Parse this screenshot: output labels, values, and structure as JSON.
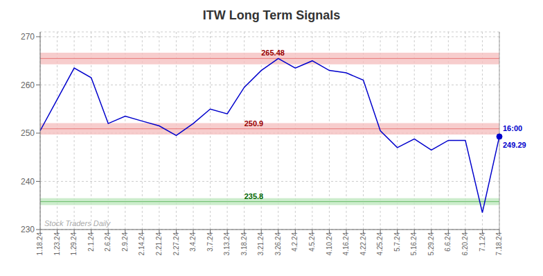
{
  "chart_data": {
    "type": "line",
    "title": "ITW Long Term Signals",
    "categories": [
      "1.18.24",
      "1.23.24",
      "1.29.24",
      "2.1.24",
      "2.6.24",
      "2.9.24",
      "2.14.24",
      "2.21.24",
      "2.27.24",
      "3.4.24",
      "3.7.24",
      "3.13.24",
      "3.18.24",
      "3.21.24",
      "3.26.24",
      "4.2.24",
      "4.5.24",
      "4.10.24",
      "4.16.24",
      "4.22.24",
      "4.25.24",
      "5.7.24",
      "5.16.24",
      "5.29.24",
      "6.6.24",
      "6.20.24",
      "7.1.24",
      "7.18.24"
    ],
    "values": [
      250.5,
      257.0,
      263.5,
      261.5,
      252.0,
      253.5,
      252.5,
      251.5,
      249.5,
      252.0,
      255.0,
      254.0,
      259.5,
      263.0,
      265.48,
      263.5,
      265.0,
      263.0,
      262.5,
      261.0,
      250.5,
      247.0,
      248.8,
      246.5,
      248.5,
      248.5,
      233.5,
      249.29
    ],
    "color": "#0000cc",
    "ylim": [
      230,
      271
    ],
    "yticks": [
      230,
      240,
      250,
      260,
      270
    ],
    "grid": true,
    "reference_lines": [
      {
        "value": 265.48,
        "label": "265.48",
        "color": "#e87878",
        "label_color": "#990000",
        "label_x": "3.21.24",
        "band": [
          264.28,
          266.68
        ],
        "band_color": "#f5c0c0"
      },
      {
        "value": 250.9,
        "label": "250.9",
        "color": "#e87878",
        "label_color": "#990000",
        "label_x": "3.18.24",
        "band": [
          249.7,
          252.1
        ],
        "band_color": "#f5c0c0"
      },
      {
        "value": 235.8,
        "label": "235.8",
        "color": "#66bb66",
        "label_color": "#006600",
        "label_x": "3.18.24",
        "band": [
          235.08,
          236.52
        ],
        "band_color": "#c0e8c0"
      }
    ],
    "last_labels": [
      "16:00",
      "249.29"
    ],
    "watermark": "Stock Traders Daily"
  }
}
